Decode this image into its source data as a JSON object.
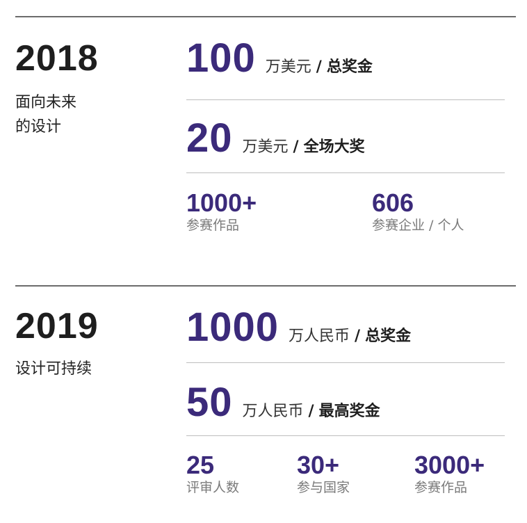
{
  "colors": {
    "accent": "#3b2a7a",
    "text": "#1e1e1e",
    "muted": "#7a7a7a"
  },
  "sections": [
    {
      "year": "2018",
      "subtitle_lines": [
        "面向未来",
        "的设计"
      ],
      "headlines": [
        {
          "value": "100",
          "unit": "万美元",
          "sep": "/",
          "label": "总奖金"
        },
        {
          "value": "20",
          "unit": "万美元",
          "sep": "/",
          "label": "全场大奖"
        }
      ],
      "stats": [
        {
          "value": "1000+",
          "label": "参赛作品"
        },
        {
          "value": "606",
          "label": "参赛企业 / 个人"
        }
      ]
    },
    {
      "year": "2019",
      "subtitle_lines": [
        "设计可持续"
      ],
      "headlines": [
        {
          "value": "1000",
          "unit": "万人民币",
          "sep": "/",
          "label": "总奖金"
        },
        {
          "value": "50",
          "unit": "万人民币",
          "sep": "/",
          "label": "最高奖金"
        }
      ],
      "stats": [
        {
          "value": "25",
          "label": "评审人数"
        },
        {
          "value": "30+",
          "label": "参与国家"
        },
        {
          "value": "3000+",
          "label": "参赛作品"
        }
      ]
    }
  ]
}
